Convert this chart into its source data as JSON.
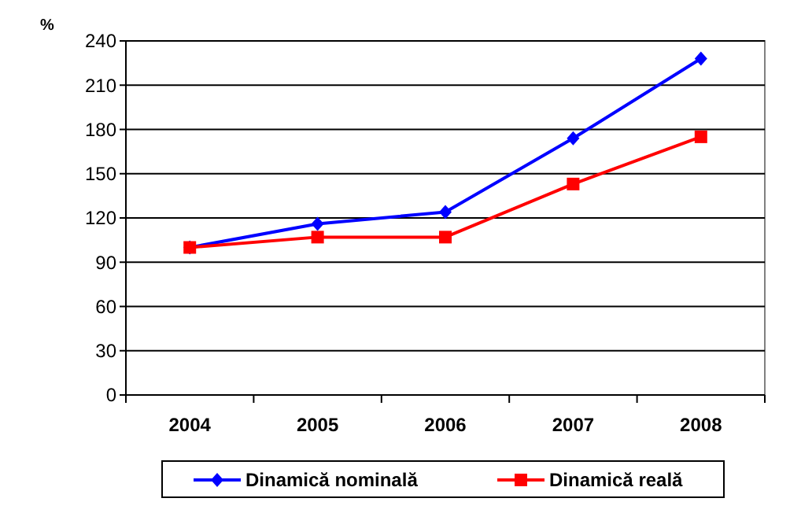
{
  "chart_data": {
    "type": "line",
    "ylabel": "%",
    "categories": [
      "2004",
      "2005",
      "2006",
      "2007",
      "2008"
    ],
    "series": [
      {
        "name": "Dinamică nominală",
        "color": "#0000ff",
        "marker": "diamond",
        "values": [
          100,
          116,
          124,
          174,
          228
        ]
      },
      {
        "name": "Dinamică reală",
        "color": "#ff0000",
        "marker": "square",
        "values": [
          100,
          107,
          107,
          143,
          175
        ]
      }
    ],
    "ylim": [
      0,
      240
    ],
    "yticks": [
      0,
      30,
      60,
      90,
      120,
      150,
      180,
      210,
      240
    ],
    "grid": "y",
    "legend": "bottom"
  }
}
